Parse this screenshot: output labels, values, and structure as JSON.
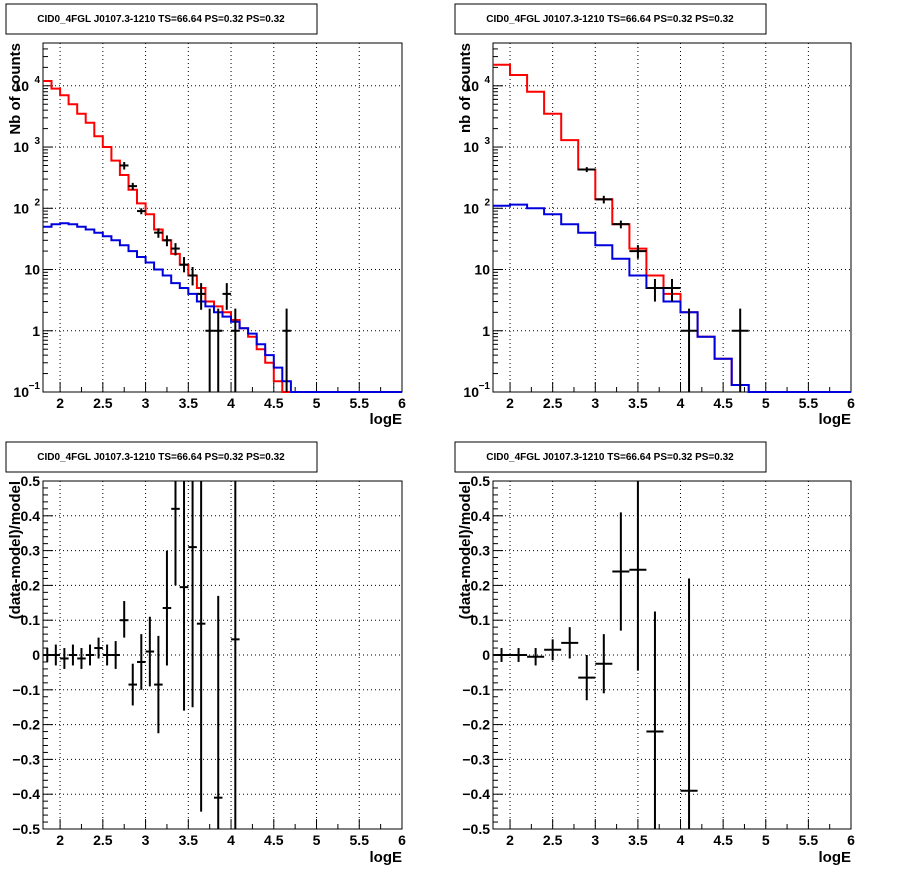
{
  "chart_data": [
    {
      "type": "line",
      "title": "CID0_4FGL J0107.3-1210 TS=66.64 PS=0.32 PS=0.32",
      "xlabel": "logE",
      "ylabel": "Nb of counts",
      "xlim": [
        1.8,
        6.0
      ],
      "ylim": [
        0.1,
        50000
      ],
      "yscale": "log",
      "grid": true,
      "x_ticks": [
        "2",
        "2.5",
        "3",
        "3.5",
        "4",
        "4.5",
        "5",
        "5.5",
        "6"
      ],
      "y_ticks": [
        {
          "value": 0.1,
          "base": "10",
          "exp": "−1"
        },
        {
          "value": 1,
          "base": "1",
          "exp": ""
        },
        {
          "value": 10,
          "base": "10",
          "exp": ""
        },
        {
          "value": 100,
          "base": "10",
          "exp": "2"
        },
        {
          "value": 1000,
          "base": "10",
          "exp": "3"
        },
        {
          "value": 10000,
          "base": "10",
          "exp": "4"
        }
      ],
      "bin_edges": [
        1.8,
        1.9,
        2.0,
        2.1,
        2.2,
        2.3,
        2.4,
        2.5,
        2.6,
        2.7,
        2.8,
        2.9,
        3.0,
        3.1,
        3.2,
        3.3,
        3.4,
        3.5,
        3.6,
        3.7,
        3.8,
        3.9,
        4.0,
        4.1,
        4.2,
        4.3,
        4.4,
        4.5,
        4.6,
        4.7,
        4.8,
        4.9,
        5.0,
        5.1,
        5.2,
        5.3,
        5.4,
        5.5,
        5.6,
        5.7,
        5.8,
        5.9,
        6.0
      ],
      "series": [
        {
          "color": "#ff0000",
          "values": [
            12000,
            9000,
            7000,
            5000,
            3500,
            2500,
            1500,
            1000,
            600,
            350,
            200,
            120,
            80,
            45,
            30,
            18,
            12,
            8,
            5,
            3,
            2.5,
            2,
            1.5,
            1.1,
            0.8,
            0.5,
            0.3,
            0.15,
            0.1,
            0.1,
            0.1,
            0.1,
            0.1,
            0.1,
            0.1,
            0.1,
            0.1,
            0.1,
            0.1,
            0.1,
            0.1,
            0.1
          ]
        },
        {
          "color": "#0000dd",
          "values": [
            50,
            55,
            57,
            55,
            50,
            45,
            40,
            35,
            30,
            25,
            20,
            16,
            13,
            10,
            8,
            6,
            5,
            4,
            3,
            2.5,
            2,
            1.7,
            1.4,
            1.1,
            0.9,
            0.6,
            0.4,
            0.25,
            0.15,
            0.1,
            0.1,
            0.1,
            0.1,
            0.1,
            0.1,
            0.1,
            0.1,
            0.1,
            0.1,
            0.1,
            0.1,
            0.1
          ]
        }
      ],
      "points": [
        {
          "x": 2.75,
          "xerr": 0.05,
          "y": 500,
          "ylo": 430,
          "yhi": 570
        },
        {
          "x": 2.85,
          "xerr": 0.05,
          "y": 230,
          "ylo": 200,
          "yhi": 260
        },
        {
          "x": 2.95,
          "xerr": 0.05,
          "y": 90,
          "ylo": 80,
          "yhi": 100
        },
        {
          "x": 3.15,
          "xerr": 0.05,
          "y": 40,
          "ylo": 33,
          "yhi": 47
        },
        {
          "x": 3.25,
          "xerr": 0.05,
          "y": 30,
          "ylo": 24,
          "yhi": 36
        },
        {
          "x": 3.35,
          "xerr": 0.05,
          "y": 22,
          "ylo": 17,
          "yhi": 27
        },
        {
          "x": 3.45,
          "xerr": 0.05,
          "y": 12,
          "ylo": 9,
          "yhi": 16
        },
        {
          "x": 3.55,
          "xerr": 0.05,
          "y": 8,
          "ylo": 5.5,
          "yhi": 11
        },
        {
          "x": 3.65,
          "xerr": 0.05,
          "y": 4,
          "ylo": 2.2,
          "yhi": 6
        },
        {
          "x": 3.75,
          "xerr": 0.05,
          "y": 1,
          "ylo": 0.1,
          "yhi": 2.3
        },
        {
          "x": 3.85,
          "xerr": 0.05,
          "y": 1,
          "ylo": 0.1,
          "yhi": 2.3
        },
        {
          "x": 3.95,
          "xerr": 0.05,
          "y": 4,
          "ylo": 2.2,
          "yhi": 6
        },
        {
          "x": 4.05,
          "xerr": 0.05,
          "y": 1,
          "ylo": 0.1,
          "yhi": 2.3
        },
        {
          "x": 4.65,
          "xerr": 0.05,
          "y": 1,
          "ylo": 0.1,
          "yhi": 2.3
        }
      ]
    },
    {
      "type": "line",
      "title": "CID0_4FGL J0107.3-1210 TS=66.64 PS=0.32 PS=0.32",
      "xlabel": "logE",
      "ylabel": "nb of counts",
      "xlim": [
        1.8,
        6.0
      ],
      "ylim": [
        0.1,
        50000
      ],
      "yscale": "log",
      "grid": true,
      "x_ticks": [
        "2",
        "2.5",
        "3",
        "3.5",
        "4",
        "4.5",
        "5",
        "5.5",
        "6"
      ],
      "y_ticks": [
        {
          "value": 0.1,
          "base": "10",
          "exp": "−1"
        },
        {
          "value": 1,
          "base": "1",
          "exp": ""
        },
        {
          "value": 10,
          "base": "10",
          "exp": ""
        },
        {
          "value": 100,
          "base": "10",
          "exp": "2"
        },
        {
          "value": 1000,
          "base": "10",
          "exp": "3"
        },
        {
          "value": 10000,
          "base": "10",
          "exp": "4"
        }
      ],
      "bin_edges": [
        1.8,
        2.0,
        2.2,
        2.4,
        2.6,
        2.8,
        3.0,
        3.2,
        3.4,
        3.6,
        3.8,
        4.0,
        4.2,
        4.4,
        4.6,
        4.8,
        5.0,
        5.2,
        5.4,
        5.6,
        5.8,
        6.0
      ],
      "series": [
        {
          "color": "#ff0000",
          "values": [
            22000,
            15000,
            8000,
            3500,
            1300,
            430,
            140,
            55,
            22,
            8,
            4,
            2,
            0.8,
            0.35,
            0.13,
            0.1,
            0.1,
            0.1,
            0.1,
            0.1,
            0.1
          ]
        },
        {
          "color": "#0000dd",
          "values": [
            110,
            115,
            100,
            80,
            55,
            40,
            25,
            15,
            8,
            5,
            3,
            2,
            0.8,
            0.35,
            0.13,
            0.1,
            0.1,
            0.1,
            0.1,
            0.1,
            0.1
          ]
        }
      ],
      "points": [
        {
          "x": 2.9,
          "xerr": 0.1,
          "y": 430,
          "ylo": 390,
          "yhi": 470
        },
        {
          "x": 3.1,
          "xerr": 0.1,
          "y": 140,
          "ylo": 120,
          "yhi": 160
        },
        {
          "x": 3.3,
          "xerr": 0.1,
          "y": 55,
          "ylo": 47,
          "yhi": 63
        },
        {
          "x": 3.5,
          "xerr": 0.1,
          "y": 20,
          "ylo": 15,
          "yhi": 25
        },
        {
          "x": 3.7,
          "xerr": 0.1,
          "y": 5,
          "ylo": 3,
          "yhi": 7
        },
        {
          "x": 3.9,
          "xerr": 0.1,
          "y": 5,
          "ylo": 3,
          "yhi": 7
        },
        {
          "x": 4.1,
          "xerr": 0.1,
          "y": 1,
          "ylo": 0.1,
          "yhi": 2.3
        },
        {
          "x": 4.7,
          "xerr": 0.1,
          "y": 1,
          "ylo": 0.1,
          "yhi": 2.3
        }
      ]
    },
    {
      "type": "scatter",
      "title": "CID0_4FGL J0107.3-1210 TS=66.64 PS=0.32 PS=0.32",
      "xlabel": "logE",
      "ylabel": "(data-model)/model",
      "xlim": [
        1.8,
        6.0
      ],
      "ylim": [
        -0.5,
        0.5
      ],
      "yscale": "linear",
      "grid": true,
      "x_ticks": [
        "2",
        "2.5",
        "3",
        "3.5",
        "4",
        "4.5",
        "5",
        "5.5",
        "6"
      ],
      "y_ticks": [
        {
          "value": -0.5,
          "label": "−0.5"
        },
        {
          "value": -0.4,
          "label": "−0.4"
        },
        {
          "value": -0.3,
          "label": "−0.3"
        },
        {
          "value": -0.2,
          "label": "−0.2"
        },
        {
          "value": -0.1,
          "label": "−0.1"
        },
        {
          "value": 0,
          "label": "0"
        },
        {
          "value": 0.1,
          "label": "0.1"
        },
        {
          "value": 0.2,
          "label": "0.2"
        },
        {
          "value": 0.3,
          "label": "0.3"
        },
        {
          "value": 0.4,
          "label": "0.4"
        },
        {
          "value": 0.5,
          "label": "0.5"
        }
      ],
      "points": [
        {
          "x": 1.85,
          "xerr": 0.05,
          "y": 0.0,
          "ylo": -0.02,
          "yhi": 0.02
        },
        {
          "x": 1.95,
          "xerr": 0.05,
          "y": 0.0,
          "ylo": -0.03,
          "yhi": 0.03
        },
        {
          "x": 2.05,
          "xerr": 0.05,
          "y": -0.01,
          "ylo": -0.04,
          "yhi": 0.02
        },
        {
          "x": 2.15,
          "xerr": 0.05,
          "y": 0.0,
          "ylo": -0.03,
          "yhi": 0.03
        },
        {
          "x": 2.25,
          "xerr": 0.05,
          "y": -0.01,
          "ylo": -0.04,
          "yhi": 0.02
        },
        {
          "x": 2.35,
          "xerr": 0.05,
          "y": 0.0,
          "ylo": -0.03,
          "yhi": 0.03
        },
        {
          "x": 2.45,
          "xerr": 0.05,
          "y": 0.02,
          "ylo": -0.01,
          "yhi": 0.05
        },
        {
          "x": 2.55,
          "xerr": 0.05,
          "y": 0.0,
          "ylo": -0.03,
          "yhi": 0.03
        },
        {
          "x": 2.65,
          "xerr": 0.05,
          "y": 0.0,
          "ylo": -0.04,
          "yhi": 0.04
        },
        {
          "x": 2.75,
          "xerr": 0.05,
          "y": 0.1,
          "ylo": 0.05,
          "yhi": 0.155
        },
        {
          "x": 2.85,
          "xerr": 0.05,
          "y": -0.085,
          "ylo": -0.145,
          "yhi": -0.025
        },
        {
          "x": 2.95,
          "xerr": 0.05,
          "y": -0.02,
          "ylo": -0.1,
          "yhi": 0.06
        },
        {
          "x": 3.05,
          "xerr": 0.05,
          "y": 0.01,
          "ylo": -0.09,
          "yhi": 0.11
        },
        {
          "x": 3.15,
          "xerr": 0.05,
          "y": -0.085,
          "ylo": -0.225,
          "yhi": 0.055
        },
        {
          "x": 3.25,
          "xerr": 0.05,
          "y": 0.135,
          "ylo": -0.03,
          "yhi": 0.3
        },
        {
          "x": 3.35,
          "xerr": 0.05,
          "y": 0.42,
          "ylo": 0.2,
          "yhi": 0.5
        },
        {
          "x": 3.45,
          "xerr": 0.05,
          "y": 0.195,
          "ylo": -0.16,
          "yhi": 0.5
        },
        {
          "x": 3.55,
          "xerr": 0.05,
          "y": 0.31,
          "ylo": -0.15,
          "yhi": 0.5
        },
        {
          "x": 3.65,
          "xerr": 0.05,
          "y": 0.09,
          "ylo": -0.45,
          "yhi": 0.5
        },
        {
          "x": 3.85,
          "xerr": 0.05,
          "y": -0.41,
          "ylo": -0.5,
          "yhi": 0.17
        },
        {
          "x": 4.05,
          "xerr": 0.05,
          "y": 0.045,
          "ylo": -0.5,
          "yhi": 0.5
        }
      ]
    },
    {
      "type": "scatter",
      "title": "CID0_4FGL J0107.3-1210 TS=66.64 PS=0.32 PS=0.32",
      "xlabel": "logE",
      "ylabel": "(data-model)/model",
      "xlim": [
        1.8,
        6.0
      ],
      "ylim": [
        -0.5,
        0.5
      ],
      "yscale": "linear",
      "grid": true,
      "x_ticks": [
        "2",
        "2.5",
        "3",
        "3.5",
        "4",
        "4.5",
        "5",
        "5.5",
        "6"
      ],
      "y_ticks": [
        {
          "value": -0.5,
          "label": "−0.5"
        },
        {
          "value": -0.4,
          "label": "−0.4"
        },
        {
          "value": -0.3,
          "label": "−0.3"
        },
        {
          "value": -0.2,
          "label": "−0.2"
        },
        {
          "value": -0.1,
          "label": "−0.1"
        },
        {
          "value": 0,
          "label": "0"
        },
        {
          "value": 0.1,
          "label": "0.1"
        },
        {
          "value": 0.2,
          "label": "0.2"
        },
        {
          "value": 0.3,
          "label": "0.3"
        },
        {
          "value": 0.4,
          "label": "0.4"
        },
        {
          "value": 0.5,
          "label": "0.5"
        }
      ],
      "points": [
        {
          "x": 1.9,
          "xerr": 0.1,
          "y": 0.0,
          "ylo": -0.02,
          "yhi": 0.02
        },
        {
          "x": 2.1,
          "xerr": 0.1,
          "y": 0.0,
          "ylo": -0.02,
          "yhi": 0.02
        },
        {
          "x": 2.3,
          "xerr": 0.1,
          "y": -0.005,
          "ylo": -0.03,
          "yhi": 0.02
        },
        {
          "x": 2.5,
          "xerr": 0.1,
          "y": 0.015,
          "ylo": -0.015,
          "yhi": 0.045
        },
        {
          "x": 2.7,
          "xerr": 0.1,
          "y": 0.035,
          "ylo": -0.01,
          "yhi": 0.08
        },
        {
          "x": 2.9,
          "xerr": 0.1,
          "y": -0.065,
          "ylo": -0.13,
          "yhi": 0.0
        },
        {
          "x": 3.1,
          "xerr": 0.1,
          "y": -0.025,
          "ylo": -0.11,
          "yhi": 0.06
        },
        {
          "x": 3.3,
          "xerr": 0.1,
          "y": 0.24,
          "ylo": 0.07,
          "yhi": 0.41
        },
        {
          "x": 3.5,
          "xerr": 0.1,
          "y": 0.245,
          "ylo": -0.045,
          "yhi": 0.5
        },
        {
          "x": 3.7,
          "xerr": 0.1,
          "y": -0.22,
          "ylo": -0.5,
          "yhi": 0.125
        },
        {
          "x": 4.1,
          "xerr": 0.1,
          "y": -0.39,
          "ylo": -0.5,
          "yhi": 0.22
        }
      ]
    }
  ]
}
